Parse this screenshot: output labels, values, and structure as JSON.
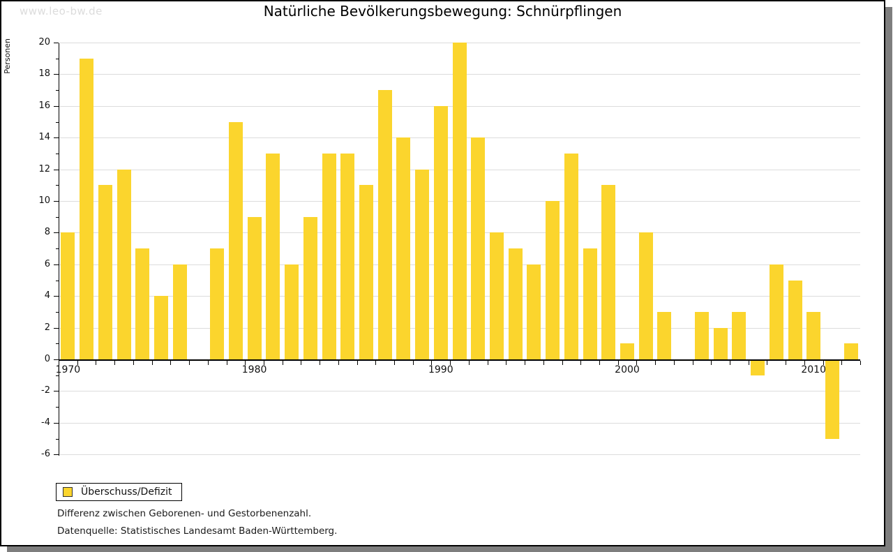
{
  "watermark": "www.leo-bw.de",
  "title": "Natürliche Bevölkerungsbewegung: Schnürpflingen",
  "legend": {
    "label": "Überschuss/Defizit"
  },
  "notes": {
    "line1": "Differenz zwischen Geborenen- und Gestorbenenzahl.",
    "line2": "Datenquelle: Statistisches Landesamt Baden-Württemberg."
  },
  "colors": {
    "bar": "#fbd52d",
    "grid": "#dcdcdc",
    "axis": "#000000",
    "watermark": "#dcdcdc",
    "frame_shadow": "#7e7e7e"
  },
  "chart_data": {
    "type": "bar",
    "title": "Natürliche Bevölkerungsbewegung: Schnürpflingen",
    "xlabel": "",
    "ylabel": "Personen",
    "series_name": "Überschuss/Defizit",
    "x": [
      1970,
      1971,
      1972,
      1973,
      1974,
      1975,
      1976,
      1977,
      1978,
      1979,
      1980,
      1981,
      1982,
      1983,
      1984,
      1985,
      1986,
      1987,
      1988,
      1989,
      1990,
      1991,
      1992,
      1993,
      1994,
      1995,
      1996,
      1997,
      1998,
      1999,
      2000,
      2001,
      2002,
      2003,
      2004,
      2005,
      2006,
      2007,
      2008,
      2009,
      2010,
      2011,
      2012
    ],
    "values": [
      8,
      19,
      11,
      12,
      7,
      4,
      6,
      0,
      7,
      15,
      9,
      13,
      6,
      9,
      13,
      13,
      11,
      17,
      14,
      12,
      16,
      20,
      14,
      8,
      7,
      6,
      10,
      13,
      7,
      11,
      1,
      8,
      3,
      0,
      3,
      2,
      3,
      -1,
      6,
      5,
      3,
      -5,
      1
    ],
    "ylim": [
      -6,
      20
    ],
    "ytick_major_step": 2,
    "ytick_minor_step": 1,
    "xticks_labeled": [
      1970,
      1980,
      1990,
      2000,
      2010
    ],
    "grid": true,
    "legend_position": "bottom-left",
    "bar_color": "#fbd52d"
  }
}
